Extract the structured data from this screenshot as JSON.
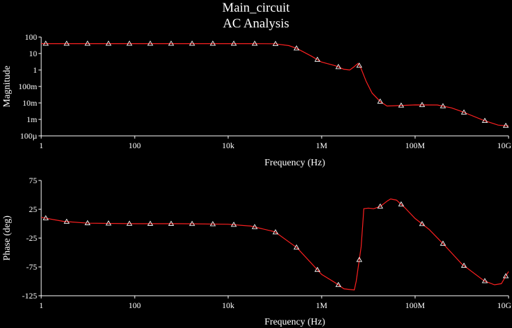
{
  "header": {
    "title": "Main_circuit",
    "subtitle": "AC Analysis"
  },
  "colors": {
    "background": "#000000",
    "axes": "#ffffff",
    "trace": "#ff2020",
    "marker": "#ffffff"
  },
  "chart_data": [
    {
      "type": "line",
      "name": "magnitude",
      "xlabel": "Frequency (Hz)",
      "ylabel": "Magnitude",
      "xscale": "log",
      "yscale": "log",
      "xlim": [
        1,
        10000000000
      ],
      "ylim": [
        0.0001,
        100
      ],
      "x_ticks": [
        {
          "value": 1,
          "label": "1"
        },
        {
          "value": 100,
          "label": "100"
        },
        {
          "value": 10000,
          "label": "10k"
        },
        {
          "value": 1000000,
          "label": "1M"
        },
        {
          "value": 100000000,
          "label": "100M"
        },
        {
          "value": 10000000000,
          "label": "10G"
        }
      ],
      "y_ticks": [
        {
          "value": 100,
          "label": "100"
        },
        {
          "value": 10,
          "label": "10"
        },
        {
          "value": 1,
          "label": "1"
        },
        {
          "value": 0.1,
          "label": "100m"
        },
        {
          "value": 0.01,
          "label": "10m"
        },
        {
          "value": 0.001,
          "label": "1m"
        },
        {
          "value": 0.0001,
          "label": "100µ"
        }
      ],
      "grid": false,
      "series": [
        {
          "points": [
            [
              1,
              40
            ],
            [
              10,
              40
            ],
            [
              100,
              40
            ],
            [
              1000,
              40
            ],
            [
              10000,
              40
            ],
            [
              30000,
              40
            ],
            [
              100000,
              39
            ],
            [
              200000,
              30
            ],
            [
              300000,
              20
            ],
            [
              600000,
              7
            ],
            [
              1000000,
              3
            ],
            [
              2000000,
              1.8
            ],
            [
              3000000,
              1.1
            ],
            [
              4000000,
              1.0
            ],
            [
              5000000,
              1.6
            ],
            [
              6000000,
              2.5
            ],
            [
              7000000,
              1.2
            ],
            [
              9000000,
              0.2
            ],
            [
              12000000,
              0.04
            ],
            [
              18000000,
              0.012
            ],
            [
              25000000,
              0.0065
            ],
            [
              40000000,
              0.0068
            ],
            [
              100000000,
              0.0076
            ],
            [
              300000000,
              0.0075
            ],
            [
              600000000,
              0.005
            ],
            [
              1000000000,
              0.003
            ],
            [
              3000000000,
              0.00085
            ],
            [
              6000000000,
              0.00045
            ],
            [
              10000000000,
              0.0004
            ]
          ],
          "markers_x": [
            1.25,
            3.5,
            9.8,
            27.5,
            77,
            215,
            602,
            1690,
            4700,
            13200,
            37000,
            103000,
            290000,
            812000,
            2280000,
            6390000,
            17900000,
            50300000,
            141000000,
            395000000,
            1110000000,
            3110000000,
            8730000000
          ]
        }
      ]
    },
    {
      "type": "line",
      "name": "phase",
      "xlabel": "Frequency (Hz)",
      "ylabel": "Phase (deg)",
      "xscale": "log",
      "yscale": "linear",
      "xlim": [
        1,
        10000000000
      ],
      "ylim": [
        -125,
        75
      ],
      "x_ticks": [
        {
          "value": 1,
          "label": "1"
        },
        {
          "value": 100,
          "label": "100"
        },
        {
          "value": 10000,
          "label": "10k"
        },
        {
          "value": 1000000,
          "label": "1M"
        },
        {
          "value": 100000000,
          "label": "100M"
        },
        {
          "value": 10000000000,
          "label": "10G"
        }
      ],
      "y_ticks": [
        {
          "value": 75,
          "label": "75"
        },
        {
          "value": 25,
          "label": "25"
        },
        {
          "value": -25,
          "label": "-25"
        },
        {
          "value": -75,
          "label": "-75"
        },
        {
          "value": -125,
          "label": "-125"
        }
      ],
      "grid": false,
      "series": [
        {
          "points": [
            [
              1,
              11
            ],
            [
              3,
              4
            ],
            [
              10,
              1
            ],
            [
              100,
              0
            ],
            [
              1000,
              0
            ],
            [
              10000,
              -1
            ],
            [
              30000,
              -4
            ],
            [
              100000,
              -14
            ],
            [
              300000,
              -42
            ],
            [
              1000000,
              -88
            ],
            [
              2000000,
              -103
            ],
            [
              3000000,
              -113
            ],
            [
              5000000,
              -115
            ],
            [
              5500000,
              -100
            ],
            [
              7000000,
              -40
            ],
            [
              8000000,
              26
            ],
            [
              10000000,
              27
            ],
            [
              13000000,
              26
            ],
            [
              18000000,
              30
            ],
            [
              25000000,
              39
            ],
            [
              30000000,
              43
            ],
            [
              40000000,
              41
            ],
            [
              60000000,
              28
            ],
            [
              100000000,
              9
            ],
            [
              200000000,
              -10
            ],
            [
              400000000,
              -35
            ],
            [
              1000000000,
              -70
            ],
            [
              3000000000,
              -99
            ],
            [
              5000000000,
              -106
            ],
            [
              7000000000,
              -104
            ],
            [
              10000000000,
              -83
            ]
          ],
          "markers_x": [
            1.25,
            3.5,
            9.8,
            27.5,
            77,
            215,
            602,
            1690,
            4700,
            13200,
            37000,
            103000,
            290000,
            812000,
            2280000,
            6390000,
            17900000,
            50300000,
            141000000,
            395000000,
            1110000000,
            3110000000,
            8730000000
          ]
        }
      ]
    }
  ]
}
